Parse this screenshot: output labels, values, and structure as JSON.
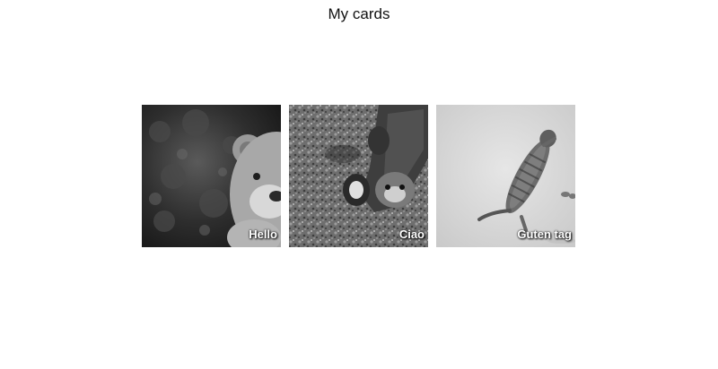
{
  "page": {
    "title": "My cards"
  },
  "cards": [
    {
      "caption": "Hello",
      "image": "teddy-bear-photo"
    },
    {
      "caption": "Ciao",
      "image": "cat-on-gravel-photo"
    },
    {
      "caption": "Guten tag",
      "image": "jumping-cat-photo"
    }
  ]
}
